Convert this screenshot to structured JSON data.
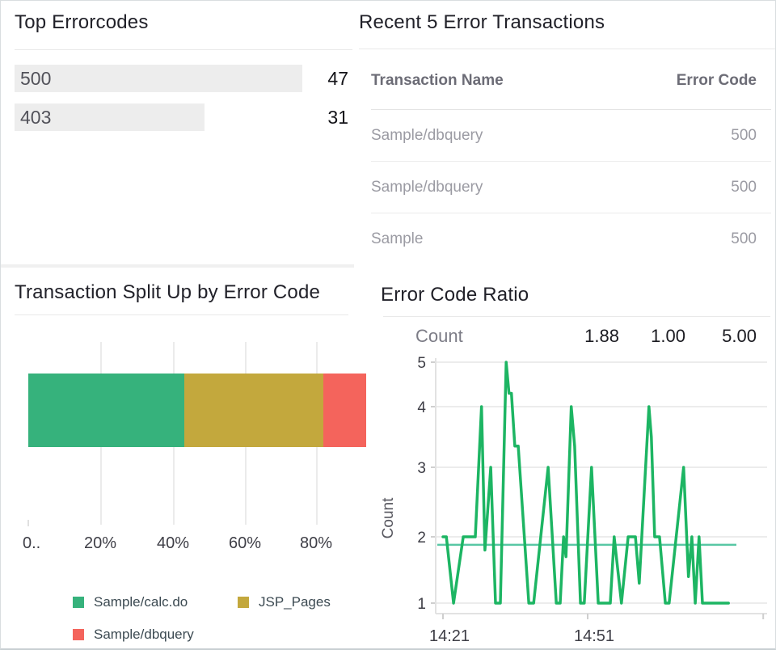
{
  "app": {
    "description_colors": {
      "title_text": "#212129",
      "muted_text": "#9b9ba3",
      "header_text": "#6c6c76",
      "axis_text": "#3e3e46",
      "legend_text": "#3c4a52"
    }
  },
  "chart_data": [
    {
      "type": "bar",
      "orientation": "horizontal",
      "title": "Top Errorcodes",
      "categories": [
        "500",
        "403"
      ],
      "values": [
        47,
        31
      ],
      "xlim": [
        0,
        47
      ],
      "track_color": "#ededed"
    },
    {
      "type": "table",
      "title": "Recent 5 Error Transactions",
      "columns": [
        "Transaction Name",
        "Error Code"
      ],
      "rows": [
        {
          "name": "Sample/dbquery",
          "code": "500"
        },
        {
          "name": "Sample/dbquery",
          "code": "500"
        },
        {
          "name": "Sample",
          "code": "500"
        }
      ]
    },
    {
      "type": "bar",
      "subtype": "stacked-horizontal-percent",
      "title": "Transaction Split Up by Error Code",
      "series": [
        {
          "name": "Sample/calc.do",
          "value_pct": 43.4,
          "color": "#36b27c"
        },
        {
          "name": "JSP_Pages",
          "value_pct": 38.7,
          "color": "#c3a83d"
        },
        {
          "name": "Sample/dbquery",
          "value_pct": 17.9,
          "color": "#f4645c"
        }
      ],
      "x_tick_labels": [
        "0..",
        "20%",
        "40%",
        "60%",
        "80%"
      ],
      "xlim": [
        0,
        100
      ],
      "legend_position": "bottom"
    },
    {
      "type": "line",
      "title": "Error Code Ratio",
      "ylabel": "Count",
      "stats": {
        "avg": 1.88,
        "min": 1.0,
        "max": 5.0
      },
      "stats_display": [
        "1.88",
        "1.00",
        "5.00"
      ],
      "y_ticks": [
        1,
        2,
        3,
        4,
        5
      ],
      "ylim": [
        1,
        5
      ],
      "x_ticks": [
        {
          "label": "14:21",
          "minute": 0
        },
        {
          "label": "14:51",
          "minute": 30
        },
        {
          "label": "",
          "minute": 66.4
        }
      ],
      "average_line": 1.88,
      "line_color": "#1db563",
      "average_color": "#58c7a4",
      "points_minute_value": [
        [
          0,
          2
        ],
        [
          0.7,
          2
        ],
        [
          2.2,
          1
        ],
        [
          4.2,
          2
        ],
        [
          6.7,
          2
        ],
        [
          8,
          4
        ],
        [
          8.7,
          1.8
        ],
        [
          9.9,
          3
        ],
        [
          10.9,
          1
        ],
        [
          11.9,
          1
        ],
        [
          13.1,
          5
        ],
        [
          13.7,
          4.3
        ],
        [
          14.2,
          4.3
        ],
        [
          14.9,
          3.35
        ],
        [
          15.6,
          3.35
        ],
        [
          17.8,
          1
        ],
        [
          18.8,
          1
        ],
        [
          21.8,
          3
        ],
        [
          23.5,
          1
        ],
        [
          24.3,
          1
        ],
        [
          25,
          2
        ],
        [
          25.5,
          1.7
        ],
        [
          26.6,
          4
        ],
        [
          27.3,
          3.35
        ],
        [
          28.5,
          1
        ],
        [
          29.3,
          1
        ],
        [
          30.8,
          3
        ],
        [
          32.2,
          1
        ],
        [
          34.7,
          1
        ],
        [
          35.5,
          2
        ],
        [
          37,
          1
        ],
        [
          38.4,
          2
        ],
        [
          39.9,
          2
        ],
        [
          40.7,
          1.3
        ],
        [
          42.7,
          4
        ],
        [
          43.2,
          3.5
        ],
        [
          43.9,
          2
        ],
        [
          44.9,
          2
        ],
        [
          46.1,
          1
        ],
        [
          46.9,
          1
        ],
        [
          49.9,
          3
        ],
        [
          50.9,
          1.4
        ],
        [
          51.6,
          2
        ],
        [
          52.3,
          1
        ],
        [
          53.1,
          2
        ],
        [
          53.8,
          1
        ],
        [
          59.2,
          1
        ]
      ]
    }
  ]
}
